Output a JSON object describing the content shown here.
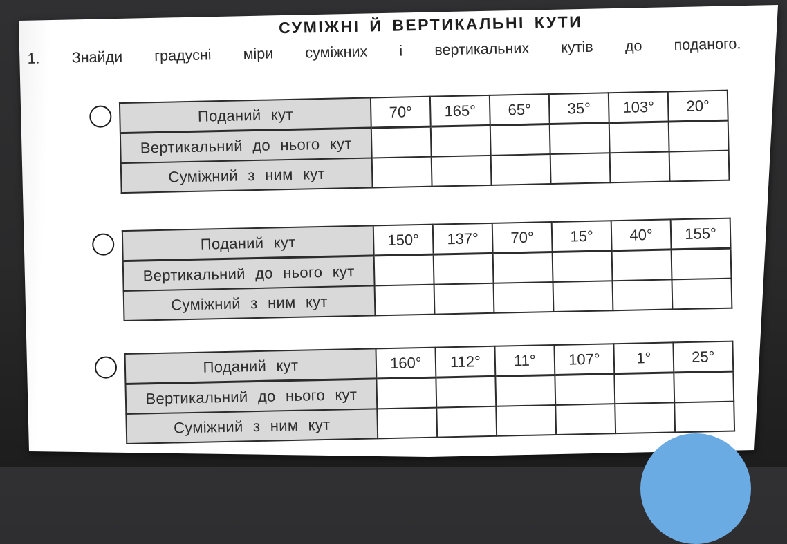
{
  "worksheet": {
    "title": "СУМІЖНІ Й ВЕРТИКАЛЬНІ КУТИ",
    "instruction": "1. Знайди градусні міри суміжних і вертикальних кутів до поданого.",
    "row_labels": {
      "given": "Поданий кут",
      "vertical": "Вертикальний до нього кут",
      "adjacent": "Суміжний з ним кут"
    },
    "tables": [
      {
        "given": [
          "70°",
          "165°",
          "65°",
          "35°",
          "103°",
          "20°"
        ],
        "vertical_answers": [
          "",
          "",
          "",
          "",
          "",
          ""
        ],
        "adjacent_answers": [
          "",
          "",
          "",
          "",
          "",
          ""
        ]
      },
      {
        "given": [
          "150°",
          "137°",
          "70°",
          "15°",
          "40°",
          "155°"
        ],
        "vertical_answers": [
          "",
          "",
          "",
          "",
          "",
          ""
        ],
        "adjacent_answers": [
          "",
          "",
          "",
          "",
          "",
          ""
        ]
      },
      {
        "given": [
          "160°",
          "112°",
          "11°",
          "107°",
          "1°",
          "25°"
        ],
        "vertical_answers": [
          "",
          "",
          "",
          "",
          "",
          ""
        ],
        "adjacent_answers": [
          "",
          "",
          "",
          "",
          "",
          ""
        ]
      }
    ]
  },
  "colors": {
    "background": "#272727",
    "page": "#ffffff",
    "label_cell": "#d9d9d9",
    "table_border": "#2c2c2c",
    "action_circle": "#6babe4"
  }
}
